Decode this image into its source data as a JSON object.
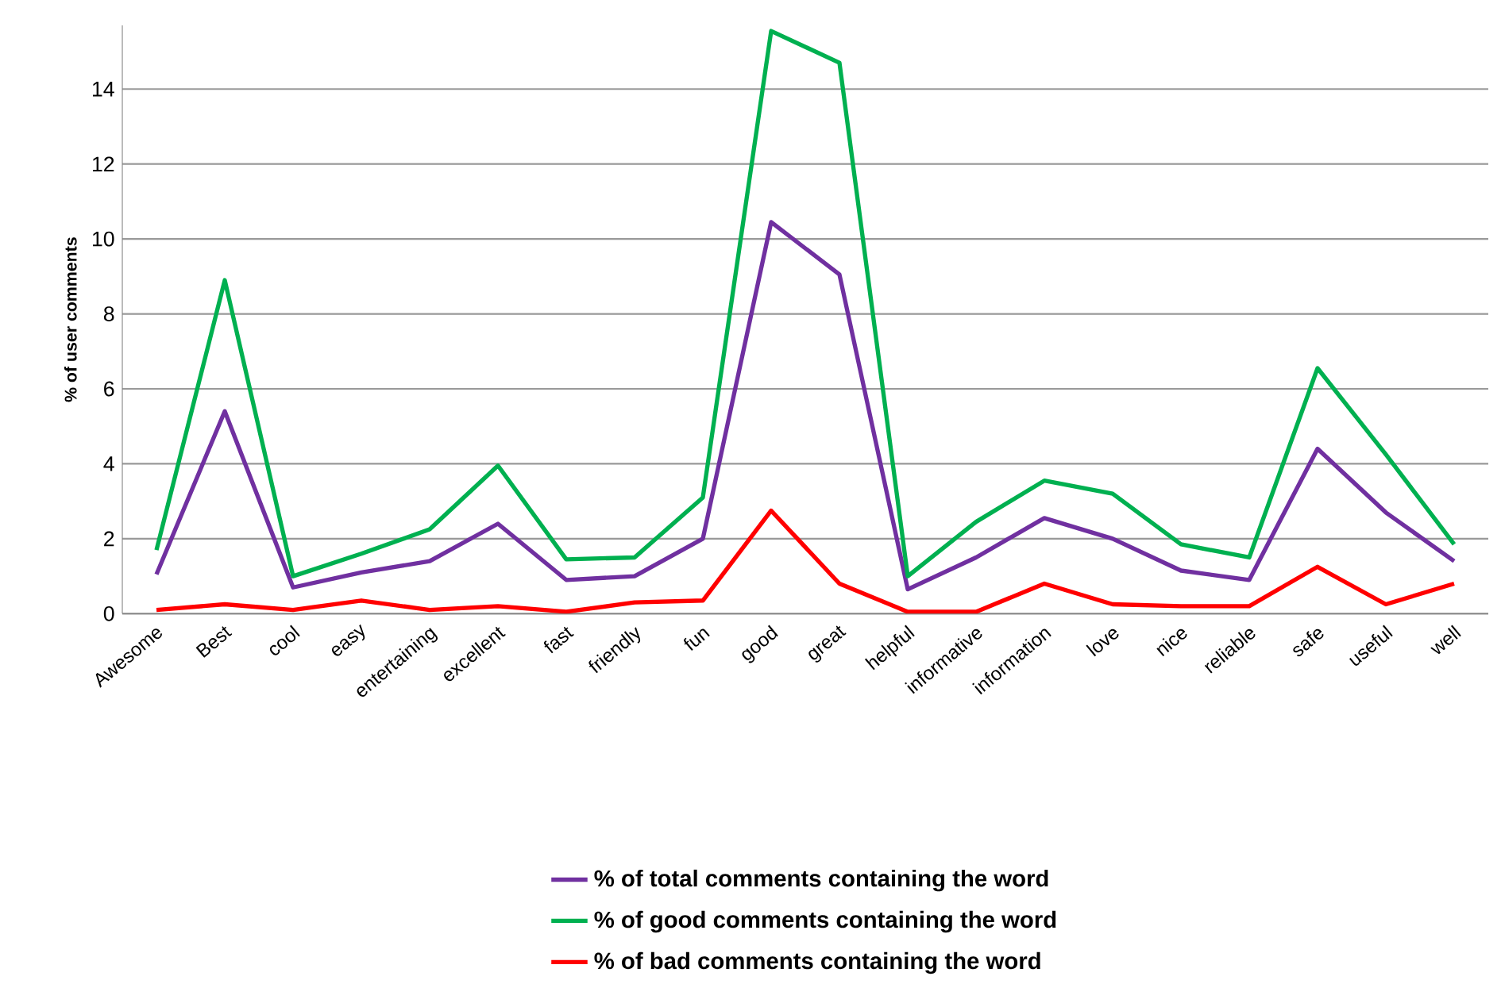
{
  "chart_data": {
    "type": "line",
    "ylabel": "% of user comments",
    "categories": [
      "Awesome",
      "Best",
      "cool",
      "easy",
      "entertaining",
      "excellent",
      "fast",
      "friendly",
      "fun",
      "good",
      "great",
      "helpful",
      "informative",
      "information",
      "love",
      "nice",
      "reliable",
      "safe",
      "useful",
      "well"
    ],
    "series": [
      {
        "name": "% of total comments containing the word",
        "color": "#7030a0",
        "values": [
          1.05,
          5.4,
          0.7,
          1.1,
          1.4,
          2.4,
          0.9,
          1.0,
          2.0,
          10.45,
          9.05,
          0.65,
          1.5,
          2.55,
          2.0,
          1.15,
          0.9,
          4.4,
          2.7,
          1.4
        ]
      },
      {
        "name": "% of good comments containing the word",
        "color": "#00b050",
        "values": [
          1.7,
          8.9,
          1.0,
          1.6,
          2.25,
          3.95,
          1.45,
          1.5,
          3.1,
          15.55,
          14.7,
          1.0,
          2.45,
          3.55,
          3.2,
          1.85,
          1.5,
          6.55,
          4.25,
          1.85
        ]
      },
      {
        "name": "% of bad comments containing the word",
        "color": "#ff0000",
        "values": [
          0.1,
          0.25,
          0.1,
          0.35,
          0.1,
          0.2,
          0.05,
          0.3,
          0.35,
          2.75,
          0.8,
          0.05,
          0.05,
          0.8,
          0.25,
          0.2,
          0.2,
          1.25,
          0.25,
          0.8
        ]
      }
    ],
    "ylim": [
      0,
      15.7
    ],
    "yticks": [
      0,
      2,
      4,
      6,
      8,
      10,
      12,
      14
    ],
    "grid": "y",
    "legend": "bottom",
    "marker": "none",
    "line_style": "solid"
  }
}
